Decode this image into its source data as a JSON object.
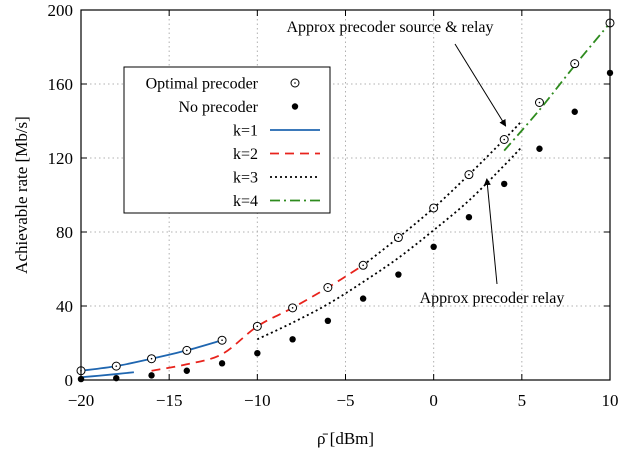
{
  "chart_data": {
    "type": "line",
    "xlabel": "ρ̄ [dBm]",
    "ylabel": "Achievable rate [Mb/s]",
    "xlim": [
      -20,
      10
    ],
    "ylim": [
      0,
      200
    ],
    "xticks": [
      -20,
      -15,
      -10,
      -5,
      0,
      5,
      10
    ],
    "yticks": [
      0,
      40,
      80,
      120,
      160,
      200
    ],
    "xtick_labels": [
      "−20",
      "−15",
      "−10",
      "−5",
      "0",
      "5",
      "10"
    ],
    "ytick_labels": [
      "0",
      "40",
      "80",
      "120",
      "160",
      "200"
    ],
    "grid": true,
    "legend_position": "upper-left",
    "series": [
      {
        "name": "Optimal precoder",
        "kind": "points",
        "marker": "open-circle",
        "x": [
          -20,
          -18,
          -16,
          -14,
          -12,
          -10,
          -8,
          -6,
          -4,
          -2,
          0,
          2,
          4,
          6,
          8,
          10
        ],
        "y": [
          5,
          7.5,
          11.5,
          16,
          21.5,
          29,
          39,
          50,
          62,
          77,
          93,
          111,
          130,
          150,
          171,
          193
        ]
      },
      {
        "name": "No precoder",
        "kind": "points",
        "marker": "filled-circle",
        "x": [
          -20,
          -18,
          -16,
          -14,
          -12,
          -10,
          -8,
          -6,
          -4,
          -2,
          0,
          2,
          4,
          6,
          8,
          10
        ],
        "y": [
          0.5,
          1,
          2.5,
          5,
          9,
          14.5,
          22,
          32,
          44,
          57,
          72,
          88,
          106,
          125,
          145,
          166
        ]
      },
      {
        "name": "k=1",
        "kind": "line",
        "color": "#1f66b0",
        "dash": "solid",
        "curves": [
          {
            "x": [
              -20,
              -18,
              -16,
              -14,
              -12
            ],
            "y": [
              5,
              7.5,
              11.5,
              16,
              21.5
            ]
          },
          {
            "x": [
              -20,
              -19,
              -18,
              -17
            ],
            "y": [
              1.5,
              2.3,
              3.2,
              4.2
            ]
          }
        ]
      },
      {
        "name": "k=2",
        "kind": "line",
        "color": "#e8231c",
        "dash": "dashed",
        "curves": [
          {
            "x": [
              -16,
              -14,
              -12,
              -10,
              -8,
              -6,
              -4
            ],
            "y": [
              5,
              8.5,
              14,
              29,
              39,
              50,
              62
            ]
          }
        ]
      },
      {
        "name": "k=3",
        "kind": "line",
        "color": "#000000",
        "dash": "dotted",
        "curves": [
          {
            "x": [
              -10,
              -8,
              -6,
              -4,
              -2,
              0,
              2,
              4,
              5
            ],
            "y": [
              22,
              31,
              41,
              53,
              66,
              81,
              97,
              116,
              126
            ]
          },
          {
            "x": [
              -4,
              -2,
              0,
              2,
              4,
              5
            ],
            "y": [
              62,
              77,
              93,
              111,
              130,
              140
            ]
          }
        ]
      },
      {
        "name": "k=4",
        "kind": "line",
        "color": "#2e8b1e",
        "dash": "dash-dot",
        "curves": [
          {
            "x": [
              4,
              6,
              8,
              10
            ],
            "y": [
              124,
              146,
              170,
              193
            ]
          }
        ]
      }
    ],
    "annotations": [
      {
        "text": "Approx precoder source & relay",
        "target": [
          4.2,
          134
        ]
      },
      {
        "text": "Approx precoder relay",
        "target": [
          2.9,
          112
        ]
      }
    ]
  }
}
